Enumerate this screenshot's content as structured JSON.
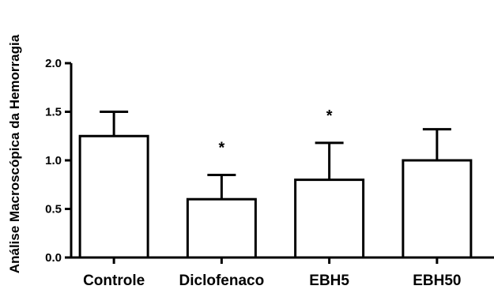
{
  "chart_data": {
    "type": "bar",
    "ylabel": "Análise Macroscópica da Hemorragia",
    "xlabel": "",
    "categories": [
      "Controle",
      "Diclofenaco",
      "EBH5",
      "EBH50"
    ],
    "values": [
      1.25,
      0.6,
      0.8,
      1.0
    ],
    "errors": [
      0.25,
      0.25,
      0.38,
      0.32
    ],
    "annotations": [
      "",
      "*",
      "*",
      ""
    ],
    "ylim": [
      0,
      2.0
    ],
    "yticks": [
      "0.0",
      "0.5",
      "1.0",
      "1.5",
      "2.0"
    ],
    "ytick_values": [
      0,
      0.5,
      1.0,
      1.5,
      2.0
    ],
    "grid": false,
    "bar_fill": "#ffffff",
    "bar_stroke": "#000000"
  }
}
